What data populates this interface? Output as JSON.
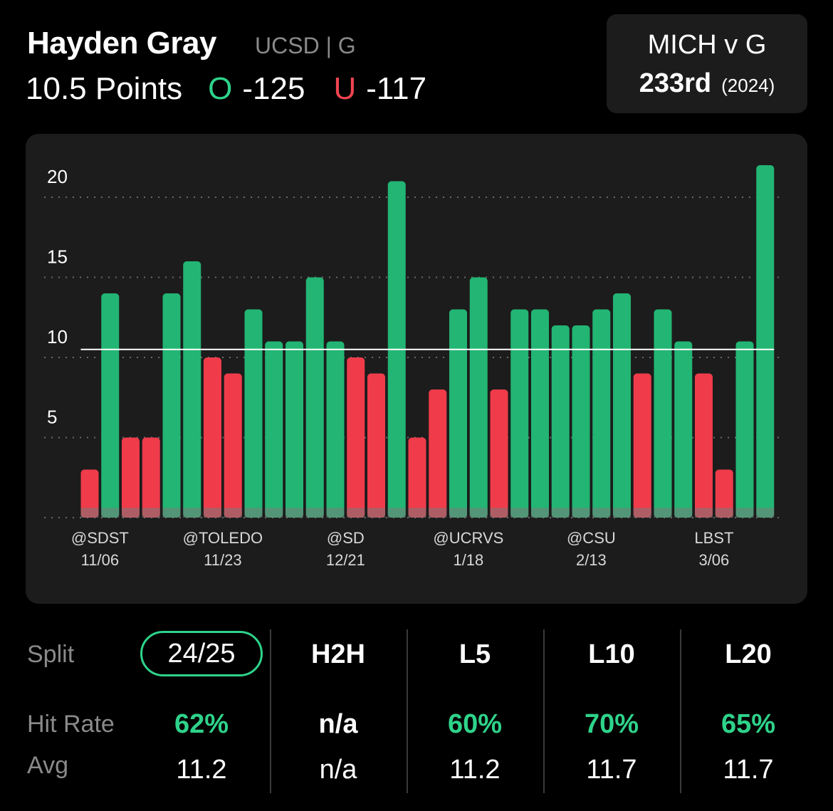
{
  "player": {
    "name": "Hayden Gray",
    "team_pos": "UCSD | G"
  },
  "line": {
    "label": "10.5 Points",
    "over_symbol": "O",
    "over_odds": "-125",
    "under_symbol": "U",
    "under_odds": "-117"
  },
  "matchup": {
    "title": "MICH v G",
    "rank": "233rd",
    "year": "(2024)"
  },
  "colors": {
    "over": "#22b573",
    "under": "#ef3b4a",
    "accent_green": "#2ed38a",
    "line_marker": "#ffffff"
  },
  "chart_data": {
    "type": "bar",
    "title": "",
    "xlabel": "",
    "ylabel": "",
    "ylim": [
      0,
      23
    ],
    "yticks": [
      5,
      10,
      15,
      20
    ],
    "grid": true,
    "reference_line": 10.5,
    "values": [
      3,
      14,
      5,
      5,
      14,
      16,
      10,
      9,
      13,
      11,
      11,
      15,
      11,
      10,
      9,
      21,
      5,
      8,
      13,
      15,
      8,
      13,
      13,
      12,
      12,
      13,
      14,
      9,
      13,
      11,
      9,
      3,
      11,
      22
    ],
    "x_labels": [
      {
        "index": 0.5,
        "line1": "@SDST",
        "line2": "11/06"
      },
      {
        "index": 6.5,
        "line1": "@TOLEDO",
        "line2": "11/23"
      },
      {
        "index": 12.5,
        "line1": "@SD",
        "line2": "12/21"
      },
      {
        "index": 18.5,
        "line1": "@UCRVS",
        "line2": "1/18"
      },
      {
        "index": 24.5,
        "line1": "@CSU",
        "line2": "2/13"
      },
      {
        "index": 30.5,
        "line1": "LBST",
        "line2": "3/06"
      }
    ]
  },
  "splits": {
    "split_label": "Split",
    "hit_rate_label": "Hit Rate",
    "avg_label": "Avg",
    "columns": [
      {
        "head": "24/25",
        "hit": "62%",
        "avg": "11.2"
      },
      {
        "head": "H2H",
        "hit": "n/a",
        "avg": "n/a"
      },
      {
        "head": "L5",
        "hit": "60%",
        "avg": "11.2"
      },
      {
        "head": "L10",
        "hit": "70%",
        "avg": "11.7"
      },
      {
        "head": "L20",
        "hit": "65%",
        "avg": "11.7"
      }
    ]
  }
}
